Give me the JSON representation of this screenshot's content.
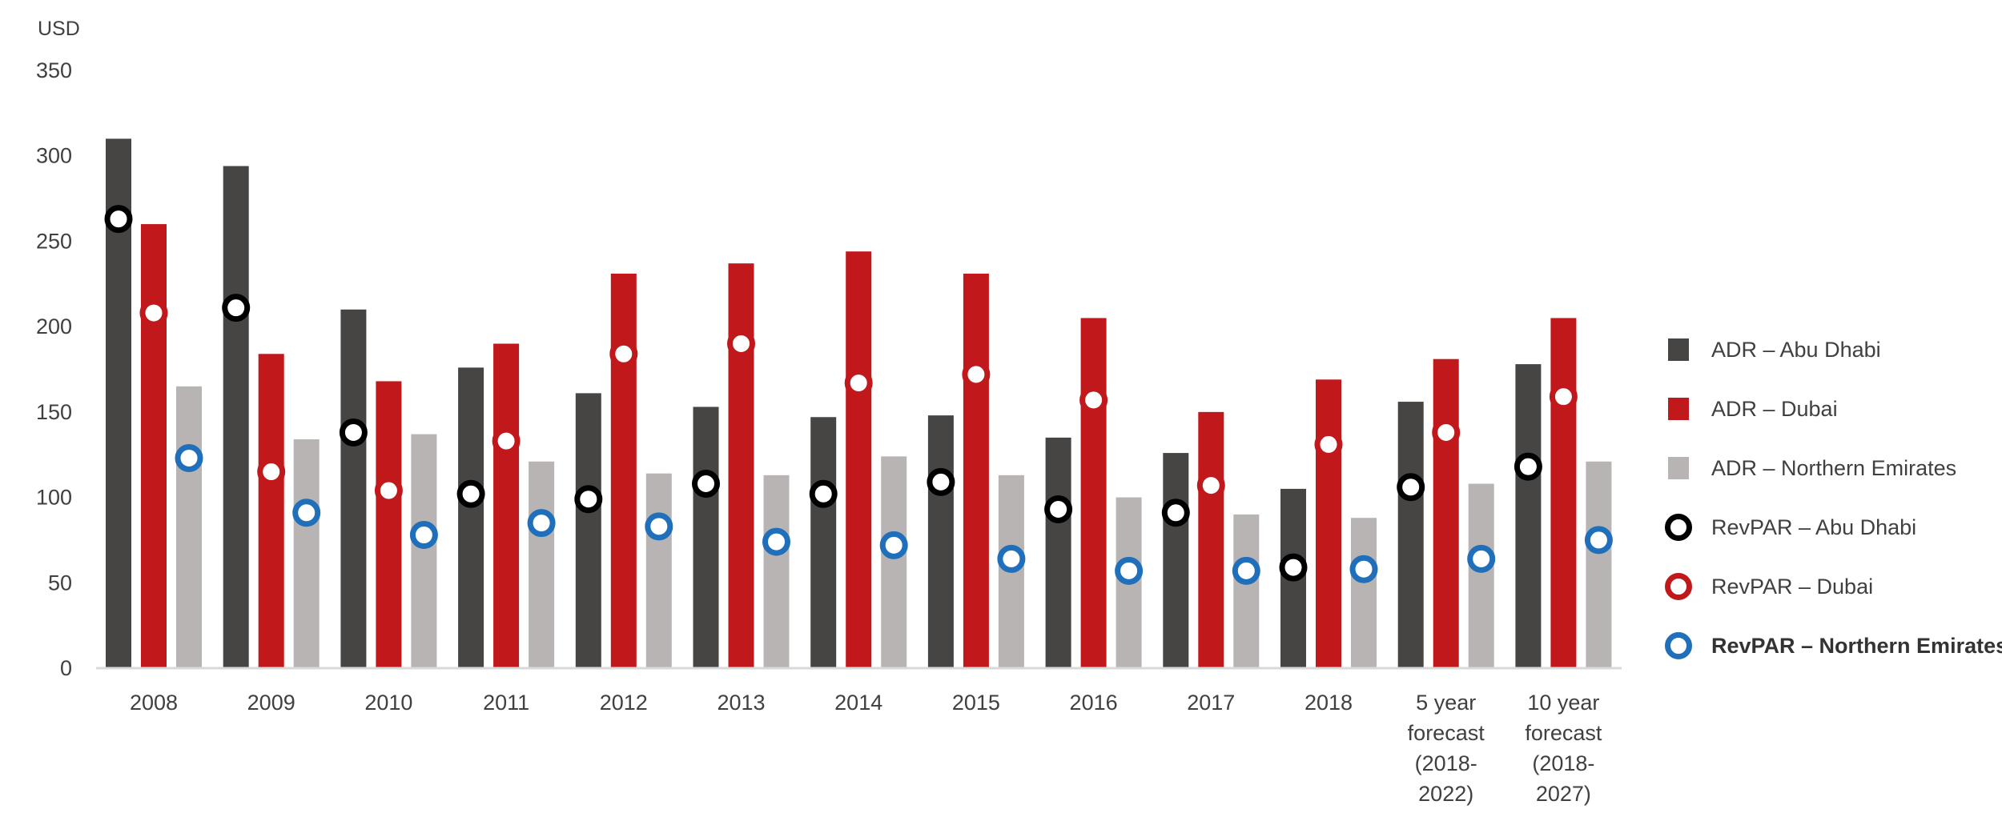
{
  "chart_data": {
    "type": "bar",
    "unit_label": "USD",
    "ylim": [
      0,
      350
    ],
    "yticks": [
      0,
      50,
      100,
      150,
      200,
      250,
      300,
      350
    ],
    "categories": [
      [
        "2008"
      ],
      [
        "2009"
      ],
      [
        "2010"
      ],
      [
        "2011"
      ],
      [
        "2012"
      ],
      [
        "2013"
      ],
      [
        "2014"
      ],
      [
        "2015"
      ],
      [
        "2016"
      ],
      [
        "2017"
      ],
      [
        "2018"
      ],
      [
        "5 year",
        "forecast",
        "(2018-",
        "2022)"
      ],
      [
        "10 year",
        "forecast",
        "(2018-",
        "2027)"
      ]
    ],
    "series": [
      {
        "name": "ADR  – Abu Dhabi",
        "kind": "bar",
        "color": "#474544",
        "values": [
          310,
          294,
          210,
          176,
          161,
          153,
          147,
          148,
          135,
          126,
          105,
          156,
          178
        ]
      },
      {
        "name": "ADR  – Dubai",
        "kind": "bar",
        "color": "#c0181b",
        "values": [
          260,
          184,
          168,
          190,
          231,
          237,
          244,
          231,
          205,
          150,
          169,
          181,
          205
        ]
      },
      {
        "name": "ADR  – Northern Emirates",
        "kind": "bar",
        "color": "#b8b4b4",
        "values": [
          165,
          134,
          137,
          121,
          114,
          113,
          124,
          113,
          100,
          90,
          88,
          108,
          121
        ]
      },
      {
        "name": "RevPAR – Abu Dhabi",
        "kind": "marker",
        "color": "#000000",
        "values": [
          263,
          211,
          138,
          102,
          99,
          108,
          102,
          109,
          93,
          91,
          59,
          106,
          118
        ]
      },
      {
        "name": "RevPAR – Dubai",
        "kind": "marker",
        "color": "#c0181b",
        "values": [
          208,
          115,
          104,
          133,
          184,
          190,
          167,
          172,
          157,
          107,
          131,
          138,
          159
        ]
      },
      {
        "name": "RevPAR – Northern Emirates",
        "kind": "marker",
        "color": "#1f6fba",
        "values": [
          123,
          91,
          78,
          85,
          83,
          74,
          72,
          64,
          57,
          57,
          58,
          64,
          75
        ]
      }
    ],
    "legend_position": "right",
    "grid": false
  }
}
